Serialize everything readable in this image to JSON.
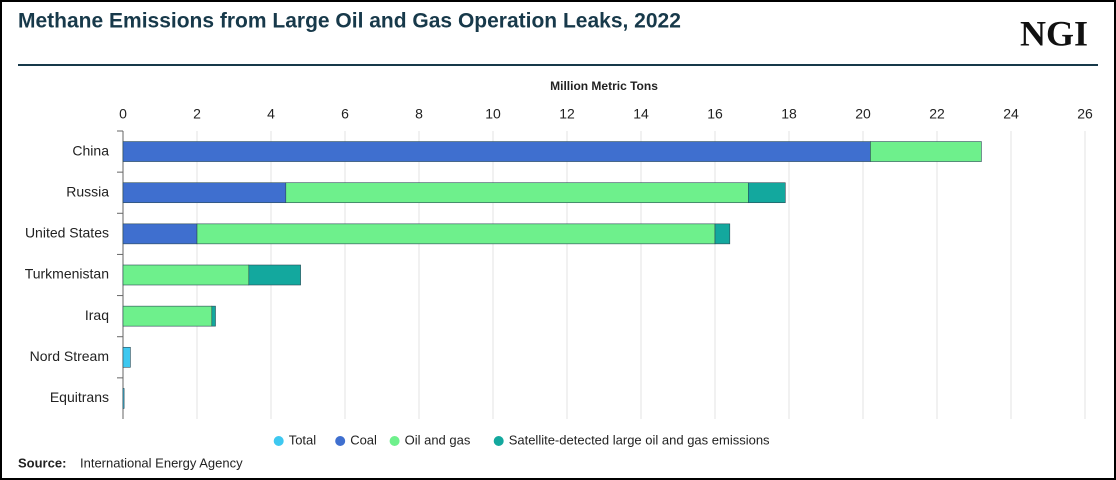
{
  "chart_data": {
    "type": "stacked-bar-horizontal",
    "title": "Methane Emissions from Large Oil and Gas Operation Leaks, 2022",
    "logo": "NGI",
    "x_label": "Million Metric Tons",
    "categories": [
      "China",
      "Russia",
      "United States",
      "Turkmenistan",
      "Iraq",
      "Nord Stream",
      "Equitrans"
    ],
    "series": [
      {
        "name": "Total",
        "color": "#3ec8f0",
        "values": [
          null,
          null,
          null,
          null,
          null,
          0.2,
          0.03
        ]
      },
      {
        "name": "Coal",
        "color": "#3f6fcf",
        "values": [
          20.2,
          4.4,
          2.0,
          null,
          null,
          null,
          null
        ]
      },
      {
        "name": "Oil and gas",
        "color": "#6ef08c",
        "values": [
          3.0,
          12.5,
          14.0,
          3.4,
          2.4,
          null,
          null
        ]
      },
      {
        "name": "Satellite-detected large oil and gas emissions",
        "color": "#13a89e",
        "values": [
          null,
          1.0,
          0.4,
          1.4,
          0.1,
          null,
          null
        ]
      }
    ],
    "xlim": [
      0,
      26
    ],
    "xticks": [
      0,
      2,
      4,
      6,
      8,
      10,
      12,
      14,
      16,
      18,
      20,
      22,
      24,
      26
    ],
    "grid": true,
    "legend": "bottom",
    "source_label": "Source:",
    "source": "International Energy Agency"
  }
}
